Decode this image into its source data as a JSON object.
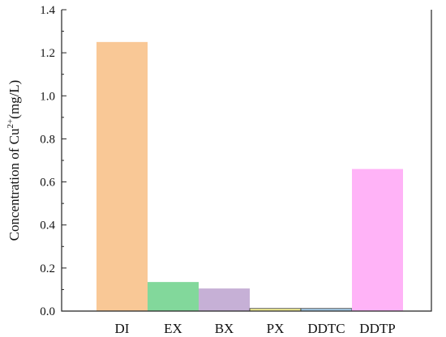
{
  "chart_data": {
    "type": "bar",
    "categories": [
      "DI",
      "EX",
      "BX",
      "PX",
      "DDTC",
      "DDTP"
    ],
    "values": [
      1.25,
      0.135,
      0.105,
      0.012,
      0.012,
      0.66
    ],
    "colors": [
      "#f9c896",
      "#82d89b",
      "#c6b0d6",
      "#f4f096",
      "#a6cde9",
      "#ffb3f7"
    ],
    "ylabel_main": "Concentration of Cu",
    "ylabel_sup": "2+",
    "ylabel_unit": "(mg/L)",
    "ylim": [
      0,
      1.4
    ],
    "yticks": [
      "0.0",
      "0.2",
      "0.4",
      "0.6",
      "0.8",
      "1.0",
      "1.2",
      "1.4"
    ],
    "grid": false,
    "legend": false
  }
}
